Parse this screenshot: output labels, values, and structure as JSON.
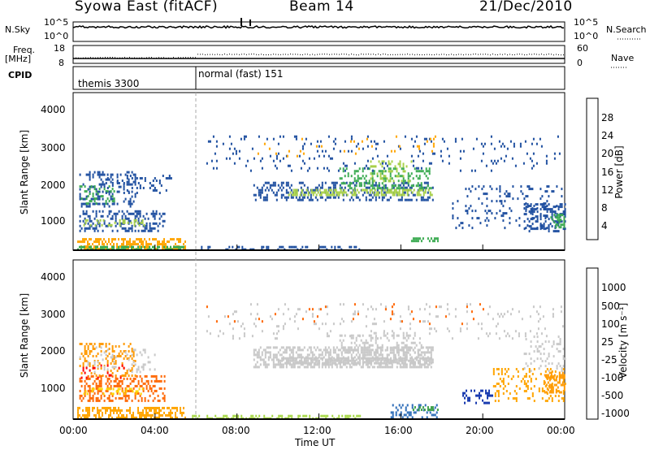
{
  "header": {
    "station": "Syowa East (fitACF)",
    "beam": "Beam 14",
    "date": "21/Dec/2010"
  },
  "top_panels": {
    "nsky_label": "N.Sky",
    "nsky_ticks": [
      "10^5",
      "10^0"
    ],
    "nsearch_label": "N.Search",
    "nsearch_ticks": [
      "10^5",
      "10^0"
    ],
    "freq_label_1": "Freq.",
    "freq_label_2": "[MHz]",
    "freq_ticks": [
      "18",
      "8"
    ],
    "nave_label": "Nave",
    "nave_ticks": [
      "60",
      "0"
    ],
    "cpid_label": "CPID",
    "cpid_modes": [
      {
        "label": "themis 3300",
        "start_hour": 0
      },
      {
        "label": "normal (fast) 151",
        "start_hour": 6
      }
    ]
  },
  "chart_data": [
    {
      "type": "heatmap",
      "name": "power",
      "ylabel": "Slant Range [km]",
      "yticks": [
        "4000",
        "3000",
        "2000",
        "1000"
      ],
      "ylim": [
        180,
        4600
      ],
      "colorbar_label": "Power [dB]",
      "colorbar_ticks": [
        "28",
        "24",
        "20",
        "16",
        "12",
        "8",
        "4"
      ],
      "colorbar_colors": [
        "#ff0000",
        "#ff6600",
        "#ffa500",
        "#ffee00",
        "#a8d04a",
        "#3cab52",
        "#2f7f5f",
        "#1f4fa0",
        "#0000ff"
      ],
      "x_range_hours": [
        0,
        24
      ]
    },
    {
      "type": "heatmap",
      "name": "velocity",
      "ylabel": "Slant Range [km]",
      "yticks": [
        "4000",
        "3000",
        "2000",
        "1000"
      ],
      "ylim": [
        180,
        4600
      ],
      "colorbar_label": "Velocity [m s⁻¹]",
      "colorbar_ticks": [
        "1000",
        "500",
        "100",
        "25",
        "-25",
        "-100",
        "-500",
        "-1000"
      ],
      "colorbar_colors": [
        "#1a3cb0",
        "#2d6db8",
        "#3fa24a",
        "#a8d84a",
        "#c8c8c8",
        "#ffd700",
        "#ff9900",
        "#ff6600",
        "#ff0000"
      ],
      "x_range_hours": [
        0,
        24
      ]
    }
  ],
  "xaxis": {
    "ticks": [
      "00:00",
      "04:00",
      "08:00",
      "12:00",
      "16:00",
      "20:00",
      "00:00"
    ],
    "label": "Time UT"
  },
  "bands": {
    "power": [
      {
        "t0": 0.2,
        "t1": 5.5,
        "r0": 220,
        "r1": 520,
        "c": "#ffa500",
        "d": 0.55
      },
      {
        "t0": 0.2,
        "t1": 5.5,
        "r0": 200,
        "r1": 300,
        "c": "#3cab52",
        "d": 0.5
      },
      {
        "t0": 0.3,
        "t1": 4.5,
        "r0": 700,
        "r1": 1300,
        "c": "#1f4fa0",
        "d": 0.35
      },
      {
        "t0": 0.5,
        "t1": 3.5,
        "r0": 850,
        "r1": 1050,
        "c": "#a8d04a",
        "d": 0.35
      },
      {
        "t0": 0.3,
        "t1": 3.0,
        "r0": 1400,
        "r1": 2400,
        "c": "#1f4fa0",
        "d": 0.25
      },
      {
        "t0": 0.3,
        "t1": 2.0,
        "r0": 1500,
        "r1": 2000,
        "c": "#3cab52",
        "d": 0.2
      },
      {
        "t0": 1.5,
        "t1": 4.8,
        "r0": 1800,
        "r1": 2300,
        "c": "#1f4fa0",
        "d": 0.15
      },
      {
        "t0": 8.8,
        "t1": 17.6,
        "r0": 1600,
        "r1": 2100,
        "c": "#1f4fa0",
        "d": 0.35
      },
      {
        "t0": 10.5,
        "t1": 17.5,
        "r0": 1700,
        "r1": 1900,
        "c": "#a8d04a",
        "d": 0.5
      },
      {
        "t0": 13.0,
        "t1": 17.5,
        "r0": 1950,
        "r1": 2500,
        "c": "#3cab52",
        "d": 0.3
      },
      {
        "t0": 14.5,
        "t1": 16.5,
        "r0": 2100,
        "r1": 2700,
        "c": "#a8d04a",
        "d": 0.2
      },
      {
        "t0": 6.5,
        "t1": 24,
        "r0": 2400,
        "r1": 3400,
        "c": "#1f4fa0",
        "d": 0.06
      },
      {
        "t0": 9.0,
        "t1": 18,
        "r0": 2800,
        "r1": 3400,
        "c": "#ffa500",
        "d": 0.03
      },
      {
        "t0": 6.0,
        "t1": 14,
        "r0": 200,
        "r1": 300,
        "c": "#1f4fa0",
        "d": 0.25
      },
      {
        "t0": 16.5,
        "t1": 17.8,
        "r0": 420,
        "r1": 540,
        "c": "#3cab52",
        "d": 0.6
      },
      {
        "t0": 18.5,
        "t1": 24,
        "r0": 800,
        "r1": 2000,
        "c": "#1f4fa0",
        "d": 0.12
      },
      {
        "t0": 22.0,
        "t1": 24,
        "r0": 700,
        "r1": 1500,
        "c": "#1f4fa0",
        "d": 0.35
      },
      {
        "t0": 23.3,
        "t1": 24,
        "r0": 800,
        "r1": 1200,
        "c": "#3cab52",
        "d": 0.4
      }
    ],
    "velocity": [
      {
        "t0": 0.2,
        "t1": 5.5,
        "r0": 240,
        "r1": 520,
        "c": "#ffa500",
        "d": 0.55
      },
      {
        "t0": 0.3,
        "t1": 4.5,
        "r0": 700,
        "r1": 1400,
        "c": "#ff6600",
        "d": 0.35
      },
      {
        "t0": 0.5,
        "t1": 3.5,
        "r0": 850,
        "r1": 1050,
        "c": "#ffd700",
        "d": 0.3
      },
      {
        "t0": 0.3,
        "t1": 3.0,
        "r0": 1400,
        "r1": 2300,
        "c": "#ff9900",
        "d": 0.25
      },
      {
        "t0": 0.3,
        "t1": 4.0,
        "r0": 1500,
        "r1": 2200,
        "c": "#c8c8c8",
        "d": 0.12
      },
      {
        "t0": 0.3,
        "t1": 2.5,
        "r0": 1300,
        "r1": 1700,
        "c": "#ff0000",
        "d": 0.1
      },
      {
        "t0": 5.8,
        "t1": 14,
        "r0": 200,
        "r1": 300,
        "c": "#a8d84a",
        "d": 0.45
      },
      {
        "t0": 8.8,
        "t1": 17.6,
        "r0": 1600,
        "r1": 2200,
        "c": "#c8c8c8",
        "d": 0.55
      },
      {
        "t0": 10.0,
        "t1": 17.5,
        "r0": 1700,
        "r1": 1900,
        "c": "#c8c8c8",
        "d": 0.7
      },
      {
        "t0": 13.0,
        "t1": 17.0,
        "r0": 1950,
        "r1": 2600,
        "c": "#c8c8c8",
        "d": 0.25
      },
      {
        "t0": 6.5,
        "t1": 24,
        "r0": 2400,
        "r1": 3400,
        "c": "#c8c8c8",
        "d": 0.06
      },
      {
        "t0": 6.5,
        "t1": 20,
        "r0": 2800,
        "r1": 3400,
        "c": "#ff6600",
        "d": 0.02
      },
      {
        "t0": 15.5,
        "t1": 17.8,
        "r0": 250,
        "r1": 600,
        "c": "#2d6db8",
        "d": 0.3
      },
      {
        "t0": 16.5,
        "t1": 17.8,
        "r0": 420,
        "r1": 540,
        "c": "#3fa24a",
        "d": 0.5
      },
      {
        "t0": 19.0,
        "t1": 20.5,
        "r0": 600,
        "r1": 1000,
        "c": "#1a3cb0",
        "d": 0.35
      },
      {
        "t0": 20.5,
        "t1": 24,
        "r0": 700,
        "r1": 1600,
        "c": "#ffa500",
        "d": 0.2
      },
      {
        "t0": 23.0,
        "t1": 24,
        "r0": 900,
        "r1": 1500,
        "c": "#ff9900",
        "d": 0.5
      },
      {
        "t0": 22.0,
        "t1": 24,
        "r0": 1500,
        "r1": 2500,
        "c": "#c8c8c8",
        "d": 0.15
      }
    ]
  }
}
